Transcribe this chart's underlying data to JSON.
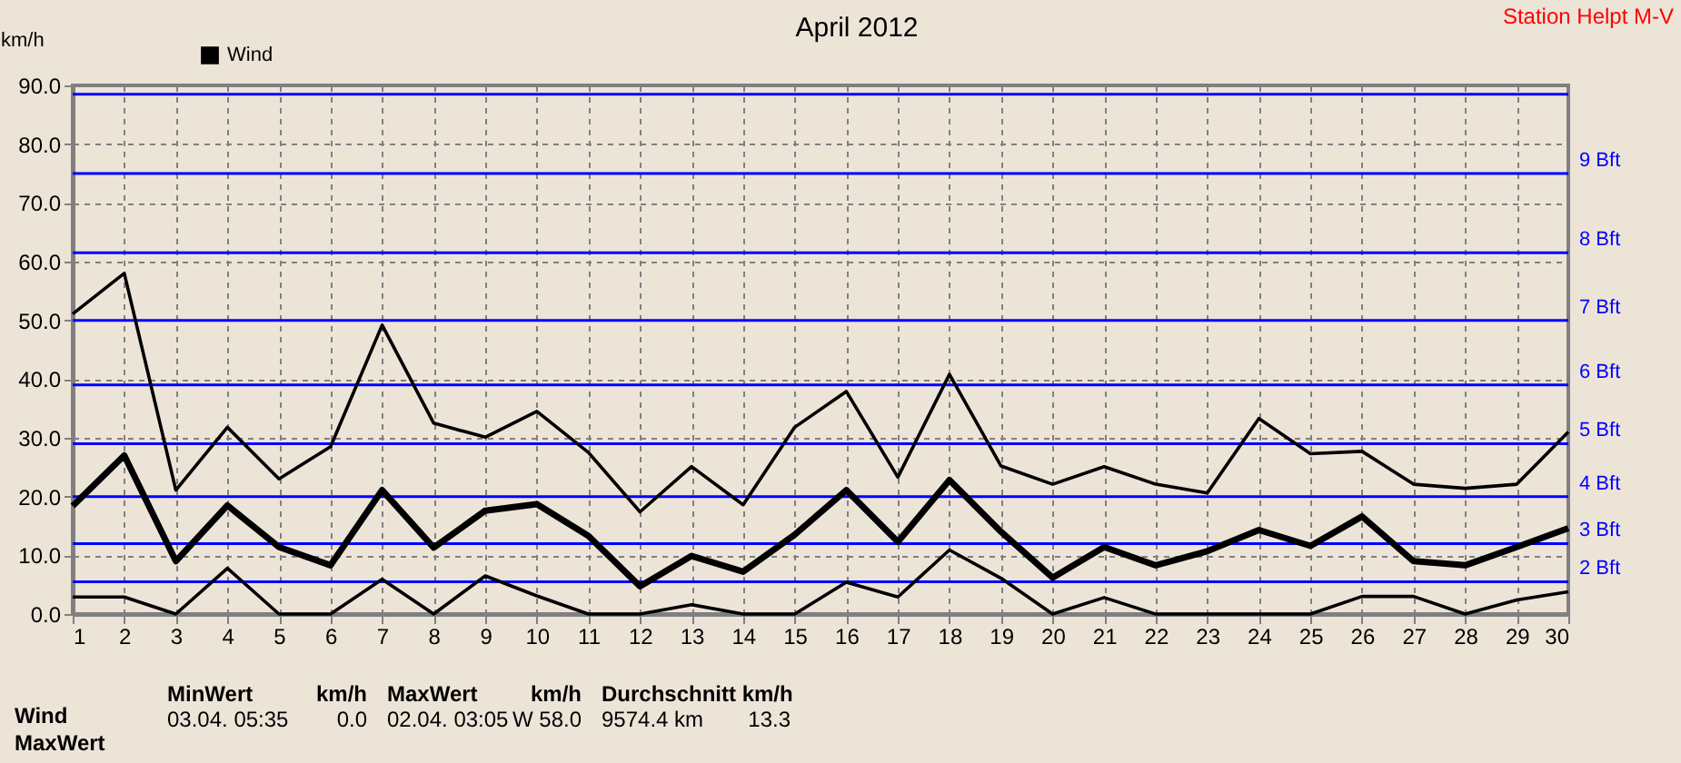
{
  "chart_data": {
    "type": "line",
    "title": "April 2012",
    "ylabel": "km/h",
    "x": [
      1,
      2,
      3,
      4,
      5,
      6,
      7,
      8,
      9,
      10,
      11,
      12,
      13,
      14,
      15,
      16,
      17,
      18,
      19,
      20,
      21,
      22,
      23,
      24,
      25,
      26,
      27,
      28,
      29,
      30
    ],
    "xlim": [
      1,
      30
    ],
    "xticks": [
      1,
      2,
      3,
      4,
      5,
      6,
      7,
      8,
      9,
      10,
      11,
      12,
      13,
      14,
      15,
      16,
      17,
      18,
      19,
      20,
      21,
      22,
      23,
      24,
      25,
      26,
      27,
      28,
      29,
      30
    ],
    "ylim": [
      0,
      90
    ],
    "yticks": [
      {
        "value": 0,
        "label": "0.0"
      },
      {
        "value": 10,
        "label": "10.0"
      },
      {
        "value": 20,
        "label": "20.0"
      },
      {
        "value": 30,
        "label": "30.0"
      },
      {
        "value": 40,
        "label": "40.0"
      },
      {
        "value": 50,
        "label": "50.0"
      },
      {
        "value": 60,
        "label": "60.0"
      },
      {
        "value": 70,
        "label": "70.0"
      },
      {
        "value": 80,
        "label": "80.0"
      },
      {
        "value": 90,
        "label": "90.0"
      }
    ],
    "series": [
      {
        "color": "#000000",
        "values": [
          51.1,
          58.0,
          21.1,
          31.8,
          23.0,
          28.5,
          49.2,
          32.5,
          30.1,
          34.5,
          27.5,
          17.4,
          25.1,
          18.6,
          31.8,
          37.9,
          23.3,
          40.8,
          25.2,
          22.1,
          25.1,
          22.1,
          20.6,
          33.3,
          27.3,
          27.7,
          22.1,
          21.4,
          22.1,
          31.0
        ]
      },
      {
        "name": "Wind",
        "color": "#000000",
        "values": [
          18.4,
          27.0,
          9.0,
          18.5,
          11.4,
          8.3,
          21.1,
          11.3,
          17.6,
          18.7,
          13.3,
          4.7,
          9.9,
          7.2,
          13.5,
          21.1,
          12.3,
          22.8,
          14.0,
          6.2,
          11.4,
          8.3,
          10.7,
          14.3,
          11.6,
          16.6,
          9.0,
          8.3,
          11.4,
          14.6
        ]
      },
      {
        "color": "#000000",
        "values": [
          2.9,
          2.9,
          0,
          7.8,
          0,
          0,
          5.9,
          0,
          6.5,
          3.1,
          0,
          0,
          1.6,
          0,
          0,
          5.4,
          2.9,
          10.9,
          6.1,
          0,
          2.8,
          0,
          0,
          0,
          0,
          3.0,
          3.0,
          0,
          2.4,
          3.8
        ]
      }
    ],
    "ref_lines": [
      {
        "axis": "y",
        "value": 5.5,
        "label": "2 Bft",
        "color": "#0000ff"
      },
      {
        "axis": "y",
        "value": 12,
        "label": "3 Bft",
        "color": "#0000ff"
      },
      {
        "axis": "y",
        "value": 20,
        "label": "4 Bft",
        "color": "#0000ff"
      },
      {
        "axis": "y",
        "value": 29,
        "label": "5 Bft",
        "color": "#0000ff"
      },
      {
        "axis": "y",
        "value": 39,
        "label": "6 Bft",
        "color": "#0000ff"
      },
      {
        "axis": "y",
        "value": 50,
        "label": "7 Bft",
        "color": "#0000ff"
      },
      {
        "axis": "y",
        "value": 61.5,
        "label": "8 Bft",
        "color": "#0000ff"
      },
      {
        "axis": "y",
        "value": 75,
        "label": "9 Bft",
        "color": "#0000ff"
      },
      {
        "axis": "y",
        "value": 88.5,
        "label": null,
        "color": "#0000ff"
      }
    ],
    "annotations": [
      "Station Helpt M-V",
      "Wind",
      "MaxWert",
      "MinWert",
      "km/h",
      "03.04.  05:35",
      "0.0",
      "MaxWert",
      "km/h",
      "02.04.  03:05",
      "W 58.0",
      "Durchschnitt km/h",
      "9574.4 km",
      "13.3"
    ],
    "grid": true,
    "legend": "top left",
    "line_style": "solid",
    "marker": "none"
  }
}
